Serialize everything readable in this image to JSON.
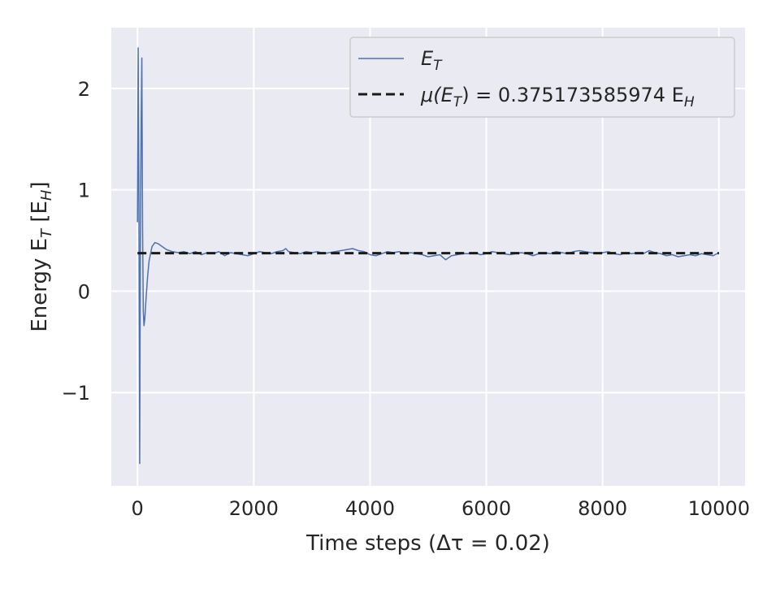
{
  "chart_data": {
    "type": "line",
    "title": "",
    "xlabel": "Time steps (Δτ = 0.02)",
    "ylabel": "Energy E_T [E_H]",
    "xlim": [
      -450,
      10450
    ],
    "ylim": [
      -1.92,
      2.6
    ],
    "x_ticks": [
      0,
      2000,
      4000,
      6000,
      8000,
      10000
    ],
    "x_tick_labels": [
      "0",
      "2000",
      "4000",
      "6000",
      "8000",
      "10000"
    ],
    "y_ticks": [
      -1,
      0,
      1,
      2
    ],
    "y_tick_labels": [
      "−1",
      "0",
      "1",
      "2"
    ],
    "grid": true,
    "legend_position": "top-right",
    "series": [
      {
        "name": "E_T",
        "style": "solid",
        "color": "#4c72b0",
        "x": [
          0,
          12,
          25,
          38,
          50,
          62,
          75,
          88,
          100,
          112,
          125,
          150,
          175,
          200,
          250,
          300,
          350,
          400,
          500,
          600,
          700,
          800,
          900,
          1000,
          1100,
          1200,
          1300,
          1400,
          1500,
          1600,
          1700,
          1800,
          1900,
          2000,
          2100,
          2200,
          2300,
          2400,
          2500,
          2550,
          2600,
          2700,
          2800,
          2900,
          3000,
          3100,
          3200,
          3300,
          3400,
          3500,
          3600,
          3700,
          3800,
          3900,
          4000,
          4100,
          4200,
          4300,
          4400,
          4500,
          4600,
          4700,
          4800,
          4900,
          5000,
          5100,
          5200,
          5300,
          5400,
          5500,
          5600,
          5700,
          5800,
          5900,
          6000,
          6100,
          6200,
          6300,
          6400,
          6500,
          6600,
          6700,
          6800,
          6900,
          7000,
          7100,
          7200,
          7300,
          7400,
          7500,
          7600,
          7700,
          7800,
          7900,
          8000,
          8100,
          8200,
          8300,
          8400,
          8500,
          8600,
          8700,
          8800,
          8900,
          9000,
          9100,
          9200,
          9300,
          9400,
          9500,
          9600,
          9700,
          9800,
          9900,
          10000
        ],
        "y": [
          0.68,
          2.4,
          0.8,
          -1.7,
          0.5,
          1.6,
          2.3,
          0.6,
          -0.2,
          -0.34,
          -0.28,
          -0.05,
          0.15,
          0.3,
          0.44,
          0.48,
          0.47,
          0.45,
          0.41,
          0.39,
          0.38,
          0.39,
          0.37,
          0.39,
          0.36,
          0.38,
          0.37,
          0.39,
          0.35,
          0.38,
          0.37,
          0.36,
          0.35,
          0.37,
          0.39,
          0.38,
          0.37,
          0.39,
          0.4,
          0.42,
          0.39,
          0.38,
          0.37,
          0.39,
          0.38,
          0.39,
          0.37,
          0.38,
          0.39,
          0.4,
          0.41,
          0.42,
          0.4,
          0.39,
          0.36,
          0.35,
          0.37,
          0.39,
          0.38,
          0.39,
          0.37,
          0.38,
          0.37,
          0.36,
          0.34,
          0.35,
          0.36,
          0.31,
          0.35,
          0.36,
          0.37,
          0.37,
          0.38,
          0.36,
          0.37,
          0.39,
          0.38,
          0.37,
          0.36,
          0.37,
          0.38,
          0.37,
          0.35,
          0.37,
          0.38,
          0.37,
          0.39,
          0.38,
          0.37,
          0.39,
          0.4,
          0.39,
          0.38,
          0.37,
          0.38,
          0.39,
          0.37,
          0.36,
          0.38,
          0.37,
          0.38,
          0.37,
          0.4,
          0.38,
          0.37,
          0.35,
          0.36,
          0.34,
          0.35,
          0.36,
          0.35,
          0.37,
          0.36,
          0.35,
          0.38
        ]
      },
      {
        "name": "μ(E_T) = 0.375173585974 E_H",
        "style": "dashed",
        "color": "#1a1a1a",
        "x": [
          0,
          10000
        ],
        "y": [
          0.375173585974,
          0.375173585974
        ]
      }
    ],
    "legend": {
      "series_label": "E",
      "series_label_sub": "T",
      "mean_label_prefix": "μ(E",
      "mean_label_sub": "T",
      "mean_label_middle": ") = 0.375173585974 E",
      "mean_label_sub2": "H"
    },
    "axis_text": {
      "x_prefix": "Time steps (Δτ = 0.02)",
      "y_prefix": "Energy E",
      "y_sub1": "T",
      "y_middle": " [E",
      "y_sub2": "H",
      "y_suffix": "]"
    },
    "colors": {
      "plot_background": "#eaeaf2",
      "grid": "#ffffff",
      "legend_border": "#cccccc"
    }
  }
}
